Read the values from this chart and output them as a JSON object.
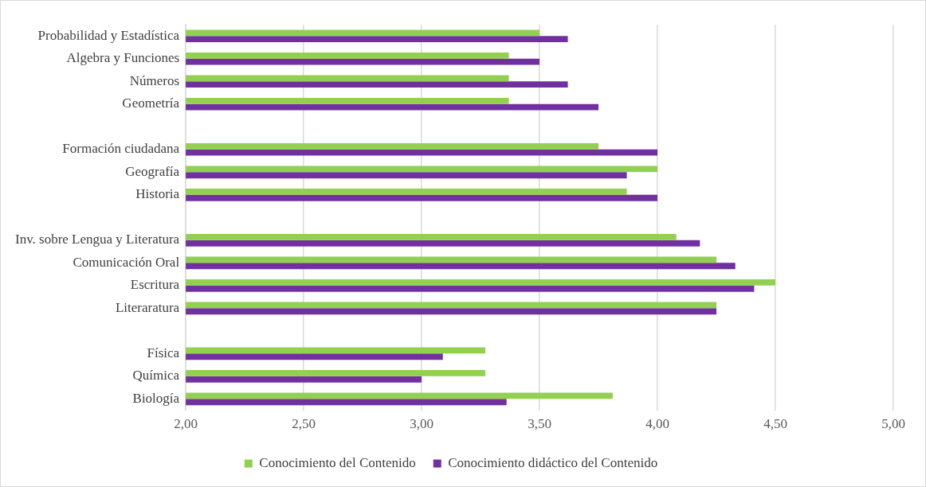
{
  "chart_data": {
    "type": "bar",
    "orientation": "horizontal",
    "categories": [
      "Probabilidad y Estadística",
      "Algebra y Funciones",
      "Números",
      "Geometría",
      null,
      "Formación ciudadana",
      "Geografía",
      "Historia",
      null,
      "Inv. sobre Lengua y Literatura",
      "Comunicación Oral",
      "Escritura",
      "Literaratura",
      null,
      "Física",
      "Química",
      "Biología"
    ],
    "series": [
      {
        "name": "Conocimiento del Contenido",
        "color": "#92d050",
        "values": [
          3.5,
          3.37,
          3.37,
          3.37,
          null,
          3.75,
          4.0,
          3.87,
          null,
          4.08,
          4.25,
          4.5,
          4.25,
          null,
          3.27,
          3.27,
          3.81
        ]
      },
      {
        "name": "Conocimiento didáctico del Contenido",
        "color": "#7030a0",
        "values": [
          3.62,
          3.5,
          3.62,
          3.75,
          null,
          4.0,
          3.87,
          4.0,
          null,
          4.18,
          4.33,
          4.41,
          4.25,
          null,
          3.09,
          3.0,
          3.36
        ]
      }
    ],
    "xlim": [
      2,
      5
    ],
    "xticks": [
      {
        "value": 2,
        "label": "2,00"
      },
      {
        "value": 2.5,
        "label": "2,50"
      },
      {
        "value": 3,
        "label": "3,00"
      },
      {
        "value": 3.5,
        "label": "3,50"
      },
      {
        "value": 4,
        "label": "4,00"
      },
      {
        "value": 4.5,
        "label": "4,50"
      },
      {
        "value": 5,
        "label": "5,00"
      }
    ],
    "grid": "x",
    "legend": "bottom"
  }
}
